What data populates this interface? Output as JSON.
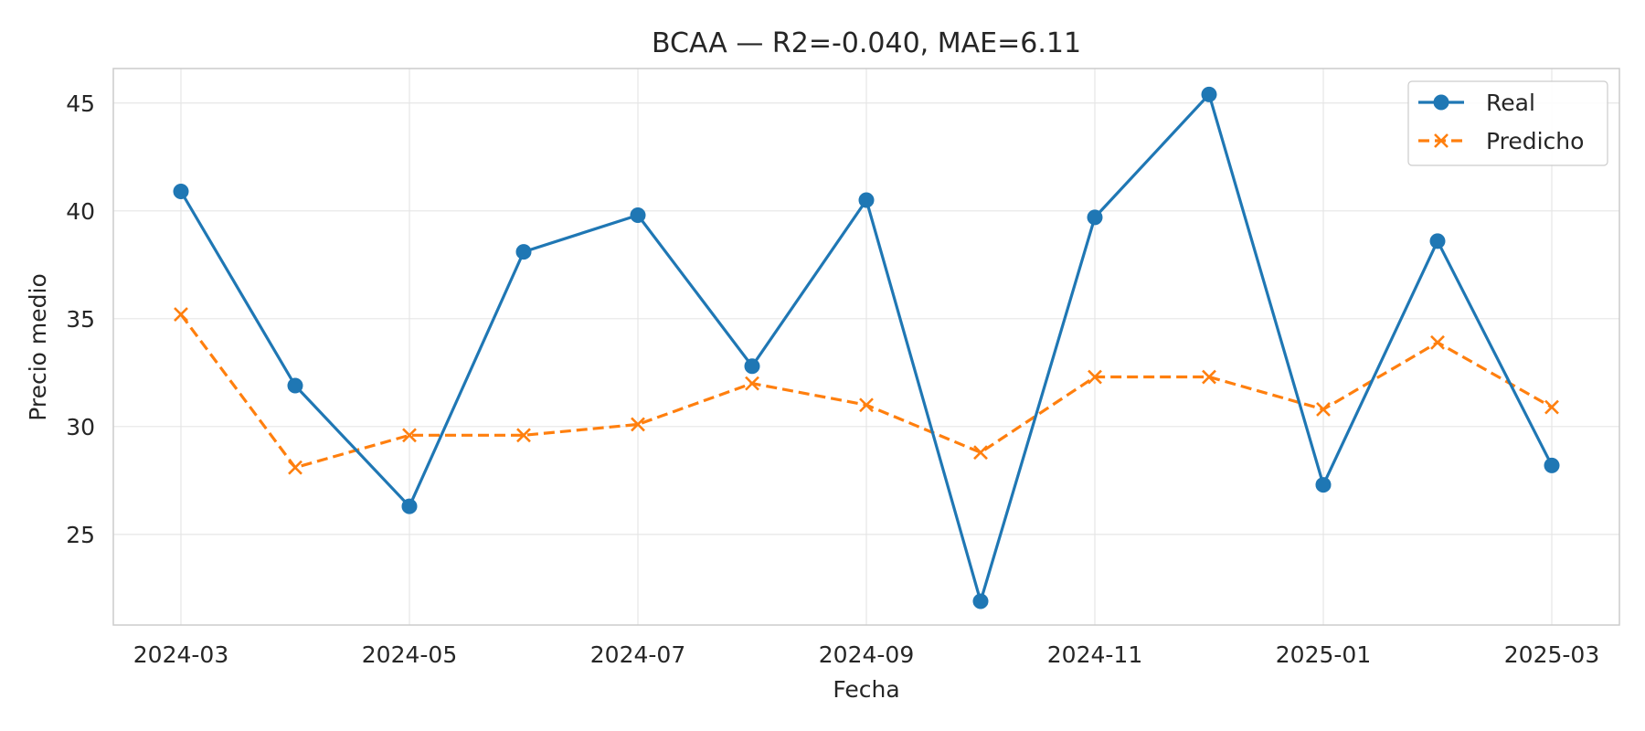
{
  "chart_data": {
    "type": "line",
    "title": "BCAA — R2=-0.040, MAE=6.11",
    "xlabel": "Fecha",
    "ylabel": "Precio medio",
    "x": [
      "2024-03",
      "2024-04",
      "2024-05",
      "2024-06",
      "2024-07",
      "2024-08",
      "2024-09",
      "2024-10",
      "2024-11",
      "2024-12",
      "2025-01",
      "2025-02",
      "2025-03"
    ],
    "x_ticks": [
      "2024-03",
      "2024-05",
      "2024-07",
      "2024-09",
      "2024-11",
      "2025-01",
      "2025-03"
    ],
    "y_ticks": [
      25,
      30,
      35,
      40,
      45
    ],
    "ylim": [
      20.8,
      46.6
    ],
    "grid": true,
    "legend_position": "top-right",
    "series": [
      {
        "name": "Real",
        "color": "#1f77b4",
        "marker": "circle",
        "line_style": "solid",
        "values": [
          40.9,
          31.9,
          26.3,
          38.1,
          39.8,
          32.8,
          40.5,
          21.9,
          39.7,
          45.4,
          27.3,
          38.6,
          28.2
        ]
      },
      {
        "name": "Predicho",
        "color": "#ff7f0e",
        "marker": "x",
        "line_style": "dashed",
        "values": [
          35.2,
          28.1,
          29.6,
          29.6,
          30.1,
          32.0,
          31.0,
          28.8,
          32.3,
          32.3,
          30.8,
          33.9,
          30.9
        ]
      }
    ]
  }
}
